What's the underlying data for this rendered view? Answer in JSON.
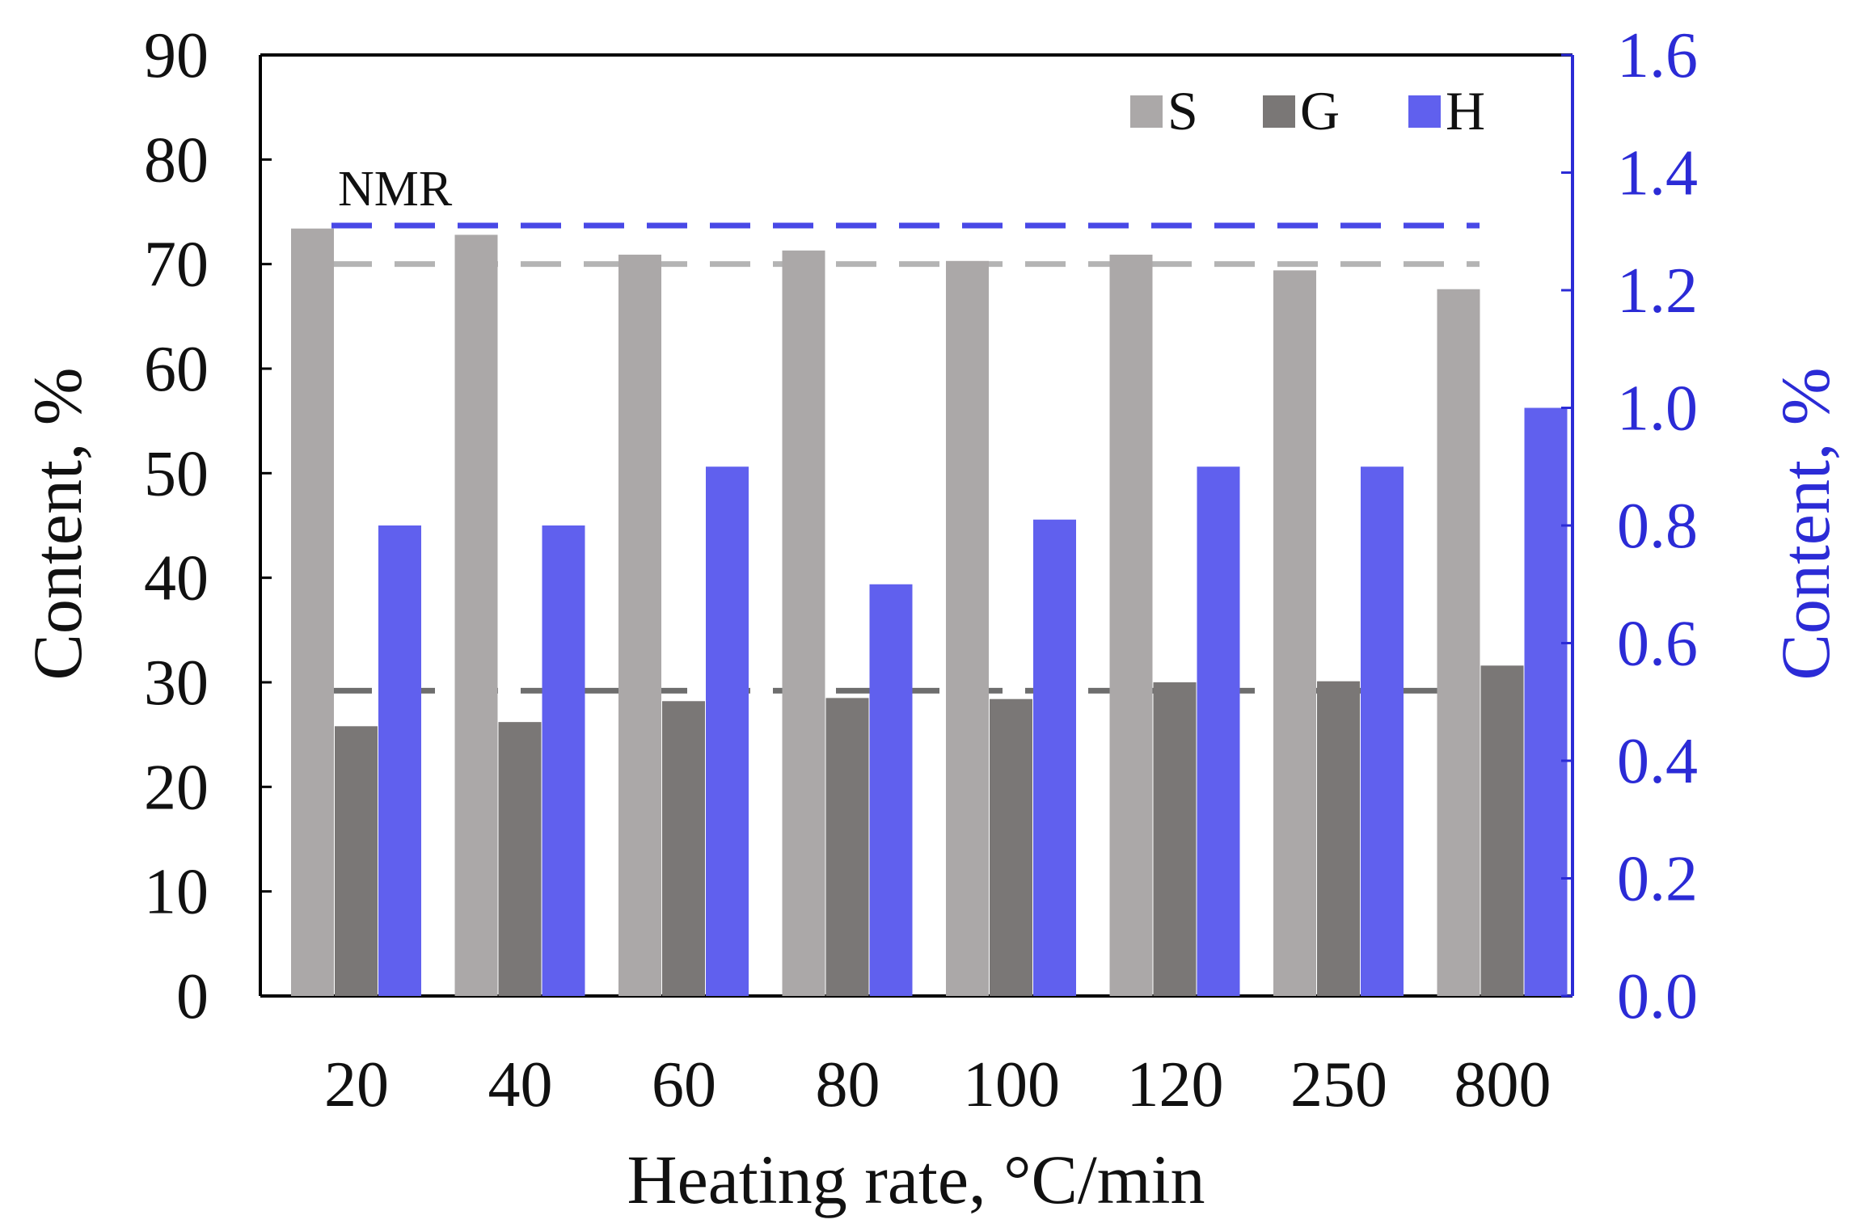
{
  "chart_data": {
    "type": "bar",
    "categories": [
      "20",
      "40",
      "60",
      "80",
      "100",
      "120",
      "250",
      "800"
    ],
    "series": [
      {
        "name": "S",
        "axis": "left",
        "color": "#aba8a8",
        "values": [
          73.4,
          72.8,
          70.9,
          71.3,
          70.3,
          70.9,
          69.4,
          67.6
        ]
      },
      {
        "name": "G",
        "axis": "left",
        "color": "#7a7776",
        "values": [
          25.8,
          26.2,
          28.2,
          28.5,
          28.4,
          30.0,
          30.1,
          31.6
        ]
      },
      {
        "name": "H",
        "axis": "right",
        "color": "#6060ee",
        "values": [
          0.8,
          0.8,
          0.9,
          0.7,
          0.81,
          0.9,
          0.9,
          1.0
        ]
      }
    ],
    "reference_lines": [
      {
        "series": "H",
        "axis": "right",
        "value": 1.31,
        "color": "#4848e6",
        "style": "dashed"
      },
      {
        "series": "S",
        "axis": "left",
        "value": 70.0,
        "color": "#b4b4b4",
        "style": "dashed"
      },
      {
        "series": "G",
        "axis": "left",
        "value": 29.2,
        "color": "#6e6e6e",
        "style": "dashed"
      }
    ],
    "annotation": "NMR",
    "xlabel": "Heating rate, °C/min",
    "ylabel": "Content, %",
    "y2label": "Content, %",
    "ylim": [
      0,
      90
    ],
    "y2lim": [
      0.0,
      1.6
    ],
    "yticks": [
      "0",
      "10",
      "20",
      "30",
      "40",
      "50",
      "60",
      "70",
      "80",
      "90"
    ],
    "y2ticks": [
      "0.0",
      "0.2",
      "0.4",
      "0.6",
      "0.8",
      "1.0",
      "1.2",
      "1.4",
      "1.6"
    ],
    "legend": {
      "position": "top-right",
      "entries": [
        "S",
        "G",
        "H"
      ]
    },
    "grid": false,
    "colors": {
      "axis_left": "#000000",
      "axis_right": "#2b2bd6"
    }
  }
}
